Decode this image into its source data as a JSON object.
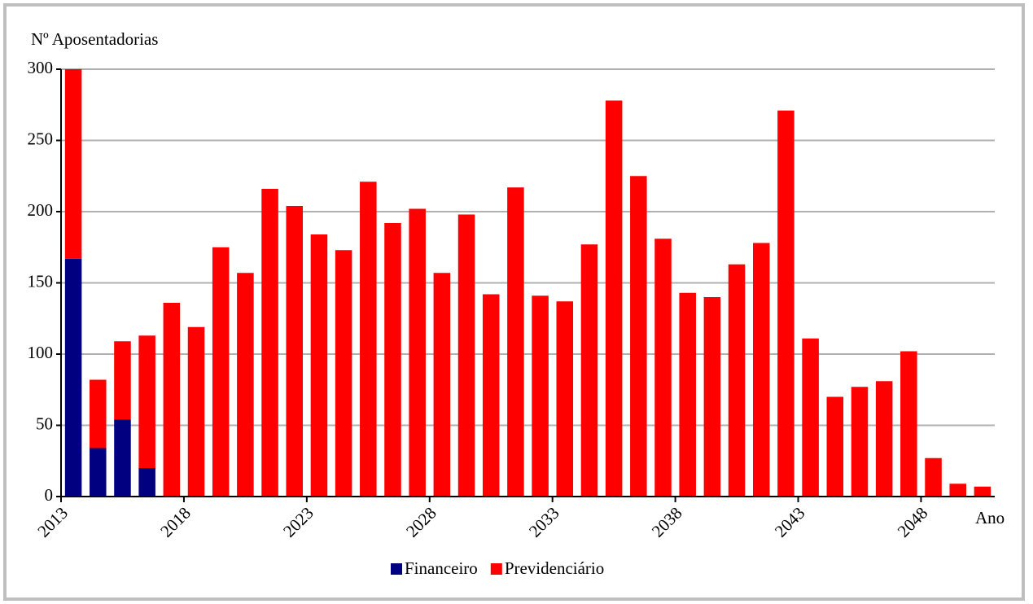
{
  "chart_data": {
    "type": "stacked-bar",
    "y_label": "Nº Aposentadorias",
    "x_label": "Ano",
    "categories": [
      "2013",
      null,
      null,
      null,
      null,
      "2018",
      null,
      null,
      null,
      null,
      "2023",
      null,
      null,
      null,
      null,
      "2028",
      null,
      null,
      null,
      null,
      "2033",
      null,
      null,
      null,
      null,
      "2038",
      null,
      null,
      null,
      null,
      "2043",
      null,
      null,
      null,
      null,
      "2048",
      null,
      null
    ],
    "series": [
      {
        "name": "Financeiro",
        "color": "#000080",
        "values": [
          167,
          34,
          54,
          20,
          0,
          0,
          0,
          0,
          0,
          0,
          0,
          0,
          0,
          0,
          0,
          0,
          0,
          0,
          0,
          0,
          0,
          0,
          0,
          0,
          0,
          0,
          0,
          0,
          0,
          0,
          0,
          0,
          0,
          0,
          0,
          0,
          0,
          0
        ]
      },
      {
        "name": "Previdenciário",
        "color": "#ff0000",
        "values": [
          133,
          48,
          55,
          93,
          136,
          119,
          175,
          157,
          216,
          204,
          184,
          173,
          221,
          192,
          202,
          157,
          198,
          142,
          217,
          141,
          137,
          177,
          278,
          225,
          181,
          143,
          140,
          163,
          178,
          271,
          111,
          70,
          77,
          81,
          102,
          27,
          9,
          7
        ]
      }
    ],
    "ylim": [
      0,
      300
    ],
    "yticks": [
      0,
      50,
      100,
      150,
      200,
      250,
      300
    ],
    "grid": true,
    "legend": "bottom"
  }
}
